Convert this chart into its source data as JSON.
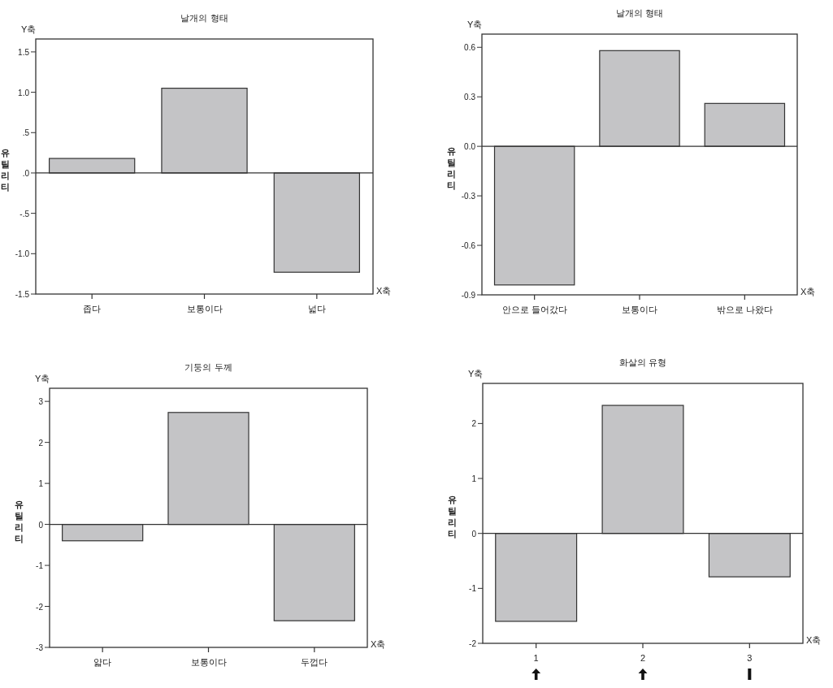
{
  "chart_data": [
    {
      "type": "bar",
      "title": "날개의 형태",
      "xlabel": "X축",
      "ylabel": "유틸리티",
      "annotations": [
        "Y축"
      ],
      "categories": [
        "좁다",
        "보통이다",
        "넓다"
      ],
      "values": [
        0.18,
        1.05,
        -1.23
      ],
      "color": "#c4c4c6",
      "ylim": [
        -1.5,
        1.66
      ],
      "yticks": [
        {
          "value": -1.5,
          "label": "-1.5"
        },
        {
          "value": -1.0,
          "label": "-1.0"
        },
        {
          "value": -0.5,
          "label": "-.5"
        },
        {
          "value": 0,
          "label": ".0"
        },
        {
          "value": 0.5,
          "label": ".5"
        },
        {
          "value": 1.0,
          "label": "1.0"
        },
        {
          "value": 1.5,
          "label": "1.5"
        }
      ],
      "ref_lines": [
        {
          "axis": "y",
          "value": 0
        }
      ],
      "grid": false
    },
    {
      "type": "bar",
      "title": "날개의 형태",
      "xlabel": "X축",
      "ylabel": "유틸리티",
      "annotations": [
        "Y축"
      ],
      "categories": [
        "안으로 들어갔다",
        "보통이다",
        "밖으로 나왔다"
      ],
      "values": [
        -0.84,
        0.58,
        0.26
      ],
      "color": "#c4c4c6",
      "ylim": [
        -0.9,
        0.68
      ],
      "yticks": [
        {
          "value": -0.9,
          "label": "-0.9"
        },
        {
          "value": -0.6,
          "label": "-0.6"
        },
        {
          "value": -0.3,
          "label": "-0.3"
        },
        {
          "value": 0,
          "label": "0.0"
        },
        {
          "value": 0.3,
          "label": "0.3"
        },
        {
          "value": 0.6,
          "label": "0.6"
        }
      ],
      "ref_lines": [
        {
          "axis": "y",
          "value": 0
        }
      ],
      "grid": false
    },
    {
      "type": "bar",
      "title": "기둥의 두께",
      "xlabel": "X축",
      "ylabel": "유틸리티",
      "annotations": [
        "Y축"
      ],
      "categories": [
        "얇다",
        "보통이다",
        "두껍다"
      ],
      "values": [
        -0.4,
        2.73,
        -2.35
      ],
      "color": "#c4c4c6",
      "ylim": [
        -3,
        3.32
      ],
      "yticks": [
        -3,
        -2,
        -1,
        0,
        1,
        2,
        3
      ],
      "ref_lines": [
        {
          "axis": "y",
          "value": 0
        }
      ],
      "grid": false
    },
    {
      "type": "bar",
      "title": "화살의 유형",
      "xlabel": "X축",
      "ylabel": "유틸리티",
      "annotations": [
        "Y축"
      ],
      "categories": [
        "1",
        "2",
        "3"
      ],
      "values": [
        -1.6,
        2.33,
        -0.79
      ],
      "color": "#c4c4c6",
      "ylim": [
        -2,
        2.73
      ],
      "yticks": [
        -2,
        -1,
        0,
        1,
        2
      ],
      "ref_lines": [
        {
          "axis": "y",
          "value": 0
        }
      ],
      "grid": false
    }
  ]
}
